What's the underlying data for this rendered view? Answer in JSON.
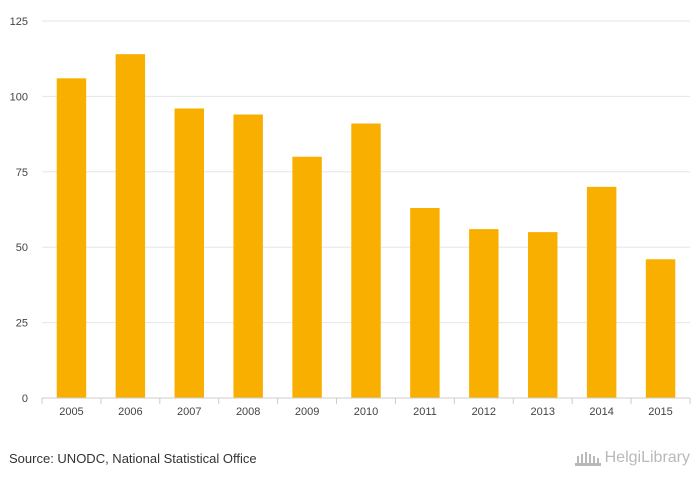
{
  "chart_data": {
    "type": "bar",
    "categories": [
      "2005",
      "2006",
      "2007",
      "2008",
      "2009",
      "2010",
      "2011",
      "2012",
      "2013",
      "2014",
      "2015"
    ],
    "values": [
      106,
      114,
      96,
      94,
      80,
      91,
      63,
      56,
      55,
      70,
      46
    ],
    "title": "",
    "xlabel": "",
    "ylabel": "",
    "ylim": [
      0,
      125
    ],
    "yticks": [
      0,
      25,
      50,
      75,
      100,
      125
    ],
    "grid": "horizontal",
    "bar_color": "#F9AF00"
  },
  "footer": {
    "source": "Source: UNODC, National Statistical Office",
    "logo_text": "HelgiLibrary"
  },
  "icons": {
    "logo_icon": "helgi-library-building-icon"
  }
}
